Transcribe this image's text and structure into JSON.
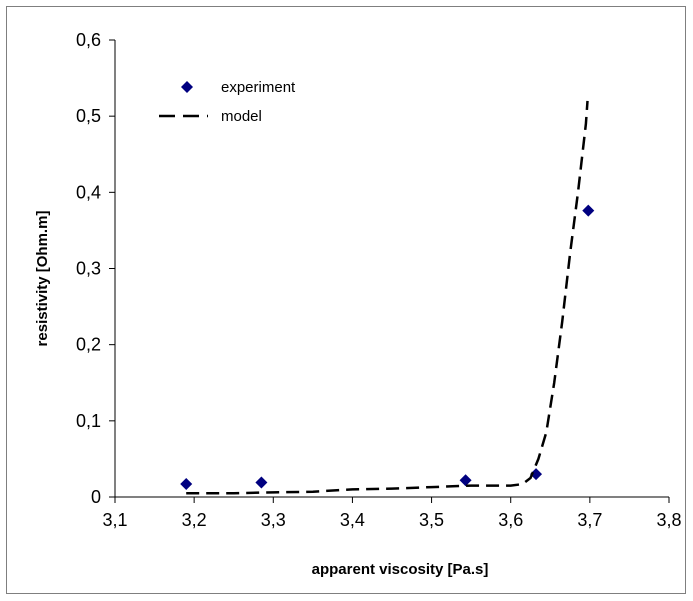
{
  "chart_data": {
    "type": "scatter",
    "title": "",
    "xlabel": "apparent viscosity [Pa.s]",
    "ylabel": "resistivity [Ohm.m]",
    "xlim": [
      3.1,
      3.8
    ],
    "ylim": [
      0,
      0.6
    ],
    "x_ticks": [
      "3,1",
      "3,2",
      "3,3",
      "3,4",
      "3,5",
      "3,6",
      "3,7",
      "3,8"
    ],
    "y_ticks": [
      "0",
      "0,1",
      "0,2",
      "0,3",
      "0,4",
      "0,5",
      "0,6"
    ],
    "grid": false,
    "legend_position": "top-left",
    "series": [
      {
        "name": "experiment",
        "style": "markers",
        "marker": "diamond",
        "color": "#000080",
        "points": [
          {
            "x": 3.19,
            "y": 0.017
          },
          {
            "x": 3.285,
            "y": 0.019
          },
          {
            "x": 3.543,
            "y": 0.022
          },
          {
            "x": 3.632,
            "y": 0.03
          },
          {
            "x": 3.698,
            "y": 0.376
          }
        ]
      },
      {
        "name": "model",
        "style": "dashed-line",
        "color": "#000000",
        "points": [
          {
            "x": 3.19,
            "y": 0.005
          },
          {
            "x": 3.25,
            "y": 0.005
          },
          {
            "x": 3.3,
            "y": 0.006
          },
          {
            "x": 3.35,
            "y": 0.007
          },
          {
            "x": 3.4,
            "y": 0.01
          },
          {
            "x": 3.45,
            "y": 0.011
          },
          {
            "x": 3.5,
            "y": 0.013
          },
          {
            "x": 3.55,
            "y": 0.015
          },
          {
            "x": 3.6,
            "y": 0.015
          },
          {
            "x": 3.615,
            "y": 0.017
          },
          {
            "x": 3.625,
            "y": 0.025
          },
          {
            "x": 3.635,
            "y": 0.05
          },
          {
            "x": 3.645,
            "y": 0.085
          },
          {
            "x": 3.655,
            "y": 0.15
          },
          {
            "x": 3.665,
            "y": 0.23
          },
          {
            "x": 3.675,
            "y": 0.32
          },
          {
            "x": 3.685,
            "y": 0.4
          },
          {
            "x": 3.695,
            "y": 0.49
          },
          {
            "x": 3.697,
            "y": 0.52
          }
        ]
      }
    ]
  }
}
